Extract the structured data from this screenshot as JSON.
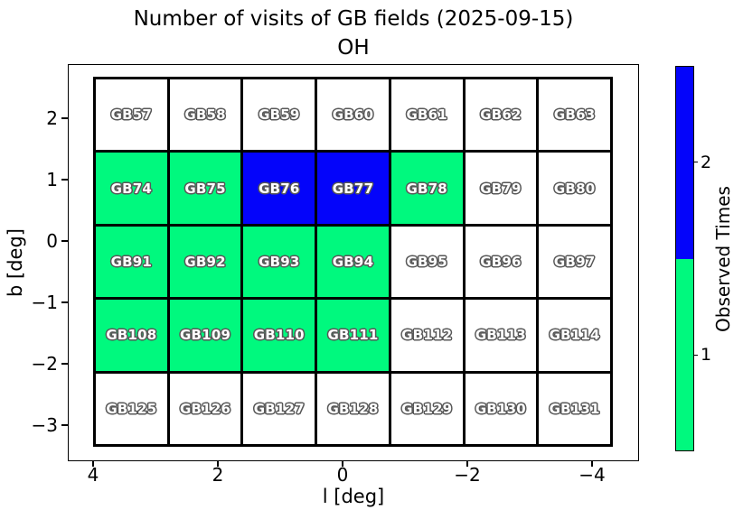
{
  "title": {
    "line1": "Number of visits of GB fields (2025-09-15)",
    "line2": "OH"
  },
  "axes": {
    "xlabel": "l [deg]",
    "ylabel": "b [deg]",
    "x_tick_labels": [
      "4",
      "2",
      "0",
      "−2",
      "−4"
    ],
    "y_tick_labels": [
      "2",
      "1",
      "0",
      "−1",
      "−2",
      "−3"
    ]
  },
  "colorbar": {
    "label": "Observed Times",
    "tick_labels": [
      "2",
      "1"
    ]
  },
  "chart_data": {
    "type": "heatmap",
    "title": "Number of visits of GB fields (2025-09-15) OH",
    "date": "2025-09-15",
    "band": "OH",
    "xlabel": "l [deg]",
    "ylabel": "b [deg]",
    "x_ticks": [
      4,
      2,
      0,
      -2,
      -4
    ],
    "y_ticks": [
      2,
      1,
      0,
      -1,
      -2,
      -3
    ],
    "x_axis_inverted": true,
    "grid_shape": {
      "rows": 5,
      "cols": 7
    },
    "colorbar": {
      "label": "Observed Times",
      "ticks": [
        2,
        1
      ],
      "value_colors": {
        "0": "#ffffff",
        "1": "#00f97e",
        "2": "#0404fa"
      }
    },
    "grid_rows": [
      [
        {
          "name": "GB57",
          "visits": 0
        },
        {
          "name": "GB58",
          "visits": 0
        },
        {
          "name": "GB59",
          "visits": 0
        },
        {
          "name": "GB60",
          "visits": 0
        },
        {
          "name": "GB61",
          "visits": 0
        },
        {
          "name": "GB62",
          "visits": 0
        },
        {
          "name": "GB63",
          "visits": 0
        }
      ],
      [
        {
          "name": "GB74",
          "visits": 1
        },
        {
          "name": "GB75",
          "visits": 1
        },
        {
          "name": "GB76",
          "visits": 2
        },
        {
          "name": "GB77",
          "visits": 2
        },
        {
          "name": "GB78",
          "visits": 1
        },
        {
          "name": "GB79",
          "visits": 0
        },
        {
          "name": "GB80",
          "visits": 0
        }
      ],
      [
        {
          "name": "GB91",
          "visits": 1
        },
        {
          "name": "GB92",
          "visits": 1
        },
        {
          "name": "GB93",
          "visits": 1
        },
        {
          "name": "GB94",
          "visits": 1
        },
        {
          "name": "GB95",
          "visits": 0
        },
        {
          "name": "GB96",
          "visits": 0
        },
        {
          "name": "GB97",
          "visits": 0
        }
      ],
      [
        {
          "name": "GB108",
          "visits": 1
        },
        {
          "name": "GB109",
          "visits": 1
        },
        {
          "name": "GB110",
          "visits": 1
        },
        {
          "name": "GB111",
          "visits": 1
        },
        {
          "name": "GB112",
          "visits": 0
        },
        {
          "name": "GB113",
          "visits": 0
        },
        {
          "name": "GB114",
          "visits": 0
        }
      ],
      [
        {
          "name": "GB125",
          "visits": 0
        },
        {
          "name": "GB126",
          "visits": 0
        },
        {
          "name": "GB127",
          "visits": 0
        },
        {
          "name": "GB128",
          "visits": 0
        },
        {
          "name": "GB129",
          "visits": 0
        },
        {
          "name": "GB130",
          "visits": 0
        },
        {
          "name": "GB131",
          "visits": 0
        }
      ]
    ]
  }
}
